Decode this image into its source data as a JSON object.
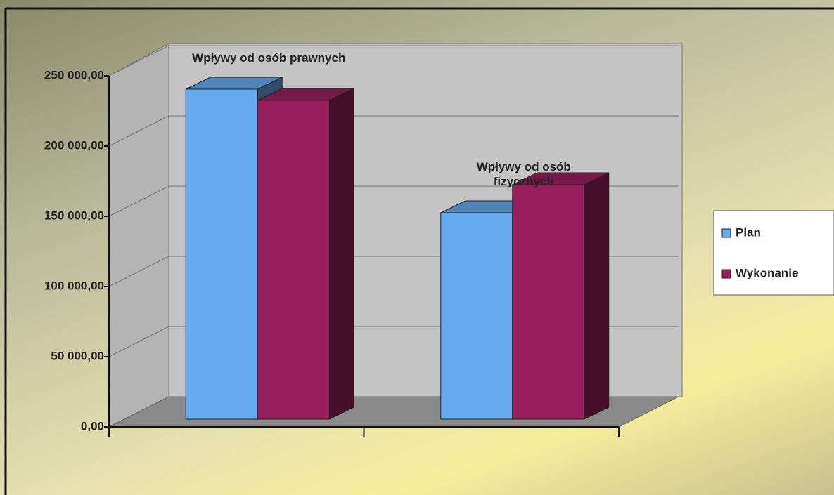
{
  "chart_data": {
    "type": "bar3d",
    "categories": [
      "Wpływy od osób prawnych",
      "Wpływy od osób fizycznych"
    ],
    "series": [
      {
        "name": "Plan",
        "color": "#66aaf0",
        "values": [
          235000,
          147000
        ]
      },
      {
        "name": "Wykonanie",
        "color": "#991f5c",
        "values": [
          227000,
          167000
        ]
      }
    ],
    "ylim": [
      0,
      250000
    ],
    "yticks": [
      {
        "value": 0,
        "label": "0,00"
      },
      {
        "value": 50000,
        "label": "50 000,00"
      },
      {
        "value": 100000,
        "label": "100 000,00"
      },
      {
        "value": 150000,
        "label": "150 000,00"
      },
      {
        "value": 200000,
        "label": "200 000,00"
      },
      {
        "value": 250000,
        "label": "250 000,00"
      }
    ],
    "grid": true,
    "legend": "right"
  }
}
